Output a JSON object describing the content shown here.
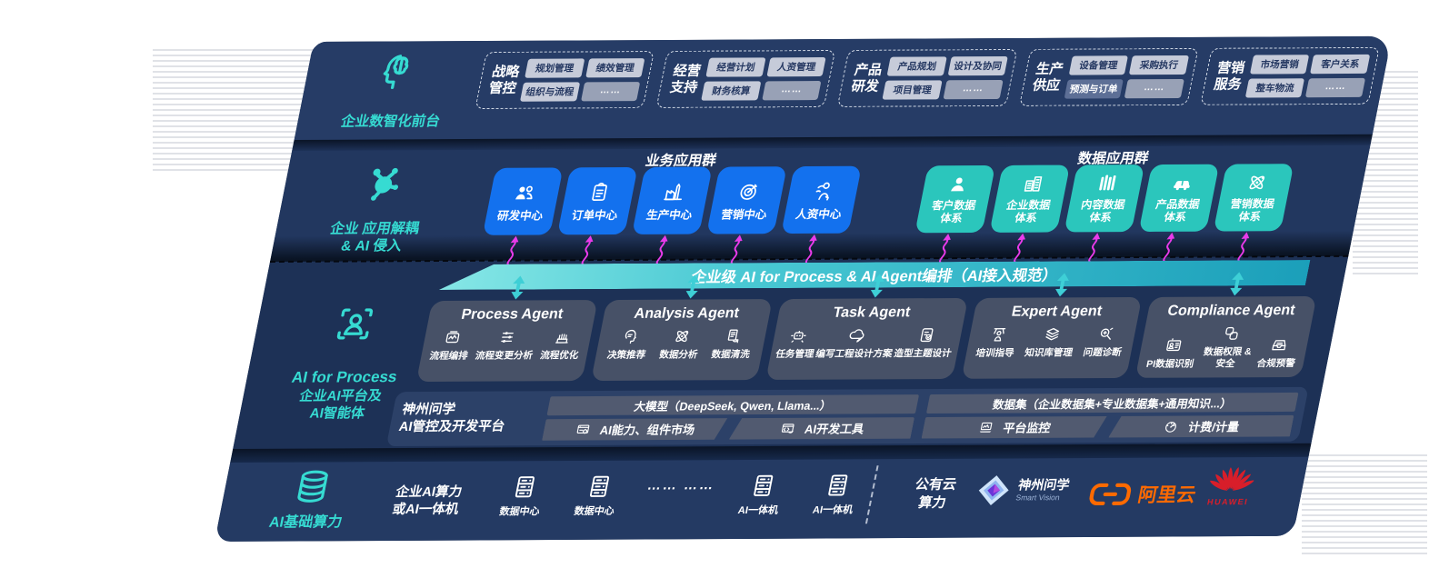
{
  "front_office": {
    "label": "企业数智化前台",
    "icon": "brain-icon",
    "groups": [
      {
        "name": "战略\n管控",
        "chips": [
          {
            "t": "规划管理"
          },
          {
            "t": "绩效管理"
          },
          {
            "t": "组织与流程"
          },
          {
            "t": "……",
            "style": "dots"
          }
        ]
      },
      {
        "name": "经营\n支持",
        "chips": [
          {
            "t": "经营计划"
          },
          {
            "t": "人资管理"
          },
          {
            "t": "财务核算"
          },
          {
            "t": "……",
            "style": "dots"
          }
        ]
      },
      {
        "name": "产品\n研发",
        "chips": [
          {
            "t": "产品规划"
          },
          {
            "t": "设计及协同"
          },
          {
            "t": "项目管理"
          },
          {
            "t": "……",
            "style": "dots"
          }
        ]
      },
      {
        "name": "生产\n供应",
        "chips": [
          {
            "t": "设备管理"
          },
          {
            "t": "采购执行"
          },
          {
            "t": "预测与订单",
            "style": "dark"
          },
          {
            "t": "……",
            "style": "dots"
          }
        ]
      },
      {
        "name": "营销\n服务",
        "chips": [
          {
            "t": "市场营销"
          },
          {
            "t": "客户关系"
          },
          {
            "t": "整车物流"
          },
          {
            "t": "……",
            "style": "dots"
          }
        ]
      }
    ]
  },
  "app_layer": {
    "label": "企业 应用解耦\n& AI 侵入",
    "icon": "molecule-icon",
    "business": {
      "title": "业务应用群",
      "tiles": [
        {
          "label": "研发中心",
          "icon": "team-icon"
        },
        {
          "label": "订单中心",
          "icon": "clipboard-icon"
        },
        {
          "label": "生产中心",
          "icon": "factory-icon"
        },
        {
          "label": "营销中心",
          "icon": "target-icon"
        },
        {
          "label": "人资中心",
          "icon": "hr-icon"
        }
      ]
    },
    "data": {
      "title": "数据应用群",
      "tiles": [
        {
          "label": "客户数据\n体系",
          "icon": "user-icon"
        },
        {
          "label": "企业数据\n体系",
          "icon": "building-icon"
        },
        {
          "label": "内容数据\n体系",
          "icon": "columns-icon"
        },
        {
          "label": "产品数据\n体系",
          "icon": "car-icon"
        },
        {
          "label": "营销数据\n体系",
          "icon": "atom-icon"
        }
      ]
    }
  },
  "orchestration_bar": {
    "label": "企业级 AI for Process & AI Agent编排（AI接入规范）"
  },
  "ai_platform": {
    "sidebar": {
      "icon": "scan-person-icon",
      "title": "AI for Process",
      "subtitle": "企业AI平台及\nAI智能体"
    },
    "agents": [
      {
        "title": "Process Agent",
        "items": [
          {
            "label": "流程编排",
            "icon": "flow-icon"
          },
          {
            "label": "流程变更分析",
            "icon": "sliders-icon"
          },
          {
            "label": "流程优化",
            "icon": "cake-icon"
          }
        ]
      },
      {
        "title": "Analysis Agent",
        "items": [
          {
            "label": "决策推荐",
            "icon": "head-idea-icon"
          },
          {
            "label": "数据分析",
            "icon": "atom-icon"
          },
          {
            "label": "数据清洗",
            "icon": "doc-clean-icon"
          }
        ]
      },
      {
        "title": "Task Agent",
        "items": [
          {
            "label": "任务管理",
            "icon": "bot-grid-icon"
          },
          {
            "label": "编写工程设计方案",
            "icon": "cloud-pen-icon"
          },
          {
            "label": "造型主题设计",
            "icon": "tablet-check-icon"
          }
        ]
      },
      {
        "title": "Expert Agent",
        "items": [
          {
            "label": "培训指导",
            "icon": "teach-icon"
          },
          {
            "label": "知识库管理",
            "icon": "layers-icon"
          },
          {
            "label": "问题诊断",
            "icon": "diagnose-icon"
          }
        ]
      },
      {
        "title": "Compliance Agent",
        "items": [
          {
            "label": "PI数据识别",
            "icon": "id-card-icon"
          },
          {
            "label": "数据权限 &\n安全",
            "icon": "permission-icon"
          },
          {
            "label": "合规预警",
            "icon": "alert-inbox-icon"
          }
        ]
      }
    ],
    "platform": {
      "label": "神州问学\nAI管控及开发平台",
      "left": {
        "bar": "大模型（DeepSeek, Qwen, Llama...）",
        "cells": [
          {
            "label": "AI能力、组件市场",
            "icon": "market-icon"
          },
          {
            "label": "AI开发工具",
            "icon": "devtool-icon"
          }
        ]
      },
      "right": {
        "bar": "数据集（企业数据集+专业数据集+通用知识...）",
        "cells": [
          {
            "label": "平台监控",
            "icon": "monitor-icon"
          },
          {
            "label": "计费/计量",
            "icon": "gauge-icon"
          }
        ]
      }
    }
  },
  "infrastructure": {
    "label": "AI基础算力",
    "icon": "database-icon",
    "compute_label": "企业AI算力\n或AI一体机",
    "servers": [
      {
        "label": "数据中心",
        "icon": "server-icon"
      },
      {
        "label": "数据中心",
        "icon": "server-icon"
      },
      {
        "ellipsis": "…… ……"
      },
      {
        "label": "AI一体机",
        "icon": "server-icon"
      },
      {
        "label": "AI一体机",
        "icon": "server-icon"
      }
    ],
    "public_cloud_label": "公有云\n算力",
    "logos": [
      {
        "name": "shenzhou-wenxue-logo",
        "line1": "神州问学",
        "line2": "Smart Vision"
      },
      {
        "name": "aliyun-logo",
        "text": "阿里云"
      },
      {
        "name": "huawei-logo",
        "text": "HUAWEI"
      }
    ]
  },
  "colors": {
    "panel_navy": "#24395f",
    "accent_teal": "#36DBD2",
    "tile_blue": "#1371EE",
    "tile_teal": "#2BC6BC",
    "orchestration_teal": "#49C8D3",
    "arrow_magenta": "#EA3BEB",
    "chip_light": "#C6CBD9",
    "chip_dark": "#5D6F96",
    "aliyun_orange": "#FF6A00",
    "huawei_red": "#D81E2A"
  }
}
